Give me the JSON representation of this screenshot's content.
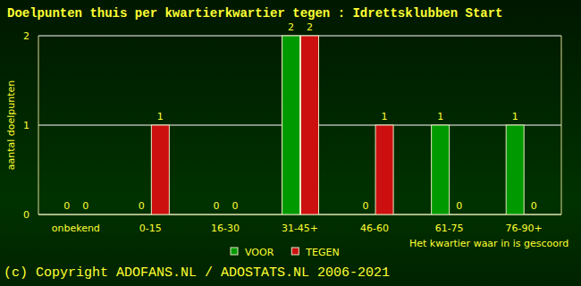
{
  "chart_data": {
    "type": "bar",
    "title": "Doelpunten thuis per kwartierkwartier tegen : Idrettsklubben Start",
    "x_label": "Het kwartier waar in is gescoord",
    "y_label": "aantal doelpunten",
    "source": "(c) Copyright ADOFANS.NL / ADOSTATS.NL 2006-2021",
    "categories": [
      "onbekend",
      "0-15",
      "16-30",
      "31-45+",
      "46-60",
      "61-75",
      "76-90+"
    ],
    "series": [
      {
        "name": "VOOR",
        "color": "#009a00",
        "values": [
          0,
          0,
          0,
          2,
          0,
          1,
          1
        ]
      },
      {
        "name": "TEGEN",
        "color": "#cc1010",
        "values": [
          0,
          1,
          0,
          2,
          1,
          0,
          0
        ]
      }
    ],
    "ylim": [
      0,
      2
    ],
    "yticks": [
      0,
      1,
      2
    ],
    "grid": true,
    "data_labels": true,
    "legend": "bottom"
  }
}
